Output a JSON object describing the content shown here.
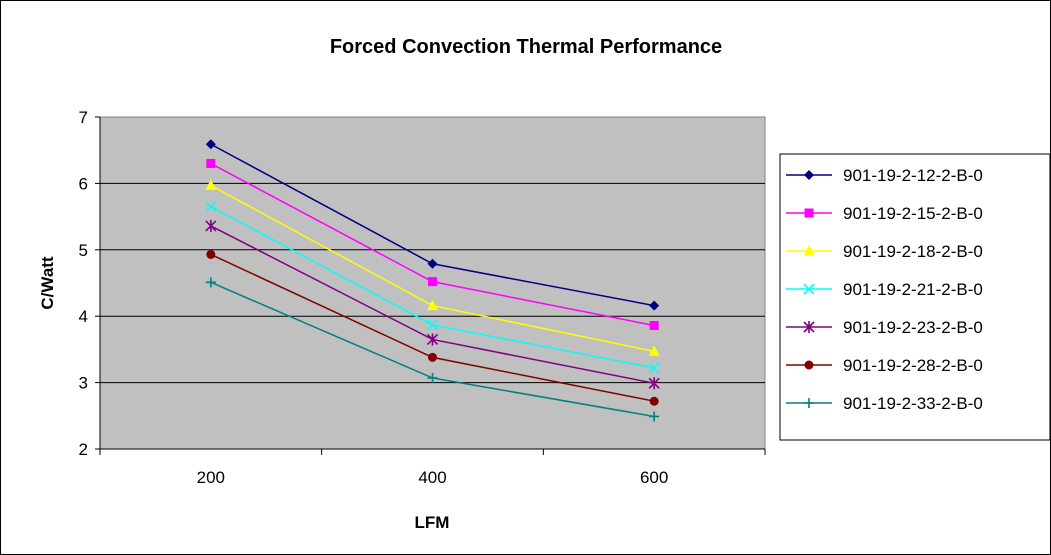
{
  "chart_data": {
    "type": "line",
    "title": "Forced Convection Thermal Performance",
    "xlabel": "LFM",
    "ylabel": "C/Watt",
    "categories": [
      "200",
      "400",
      "600"
    ],
    "ylim": [
      2,
      7
    ],
    "yticks": [
      "2",
      "3",
      "4",
      "5",
      "6",
      "7"
    ],
    "grid": "horizontal",
    "plot_background": "#c0c0c0",
    "legend_position": "right",
    "series": [
      {
        "name": "901-19-2-12-2-B-0",
        "color": "#000080",
        "marker": "diamond",
        "values": [
          6.59,
          4.79,
          4.16
        ]
      },
      {
        "name": "901-19-2-15-2-B-0",
        "color": "#ff00ff",
        "marker": "square",
        "values": [
          6.3,
          4.52,
          3.86
        ]
      },
      {
        "name": "901-19-2-18-2-B-0",
        "color": "#ffff00",
        "marker": "triangle",
        "values": [
          5.97,
          4.16,
          3.47
        ]
      },
      {
        "name": "901-19-2-21-2-B-0",
        "color": "#00ffff",
        "marker": "x",
        "values": [
          5.65,
          3.87,
          3.22
        ]
      },
      {
        "name": "901-19-2-23-2-B-0",
        "color": "#800080",
        "marker": "star",
        "values": [
          5.36,
          3.65,
          2.99
        ]
      },
      {
        "name": "901-19-2-28-2-B-0",
        "color": "#800000",
        "marker": "circle",
        "values": [
          4.93,
          3.38,
          2.72
        ]
      },
      {
        "name": "901-19-2-33-2-B-0",
        "color": "#008080",
        "marker": "plus",
        "values": [
          4.51,
          3.07,
          2.49
        ]
      }
    ]
  }
}
